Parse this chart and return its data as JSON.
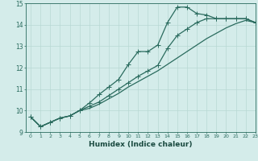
{
  "title": "",
  "xlabel": "Humidex (Indice chaleur)",
  "xlim": [
    -0.5,
    23
  ],
  "ylim": [
    9,
    15
  ],
  "xticks": [
    0,
    1,
    2,
    3,
    4,
    5,
    6,
    7,
    8,
    9,
    10,
    11,
    12,
    13,
    14,
    15,
    16,
    17,
    18,
    19,
    20,
    21,
    22,
    23
  ],
  "yticks": [
    9,
    10,
    11,
    12,
    13,
    14,
    15
  ],
  "bg_color": "#d4ecea",
  "line_color": "#2a6b5e",
  "grid_color": "#b8d8d4",
  "line1_x": [
    0,
    1,
    2,
    3,
    4,
    5,
    6,
    7,
    8,
    9,
    10,
    11,
    12,
    13,
    14,
    15,
    16,
    17,
    18,
    19,
    20,
    21,
    22,
    23
  ],
  "line1_y": [
    9.7,
    9.25,
    9.45,
    9.65,
    9.75,
    10.0,
    10.35,
    10.75,
    11.1,
    11.45,
    12.15,
    12.75,
    12.75,
    13.05,
    14.1,
    14.82,
    14.82,
    14.52,
    14.45,
    14.28,
    14.28,
    14.28,
    14.28,
    14.1
  ],
  "line2_x": [
    0,
    1,
    2,
    3,
    4,
    5,
    6,
    7,
    8,
    9,
    10,
    11,
    12,
    13,
    14,
    15,
    16,
    17,
    18,
    19,
    20,
    21,
    22,
    23
  ],
  "line2_y": [
    9.7,
    9.25,
    9.45,
    9.65,
    9.75,
    10.0,
    10.2,
    10.4,
    10.7,
    11.0,
    11.3,
    11.6,
    11.85,
    12.1,
    12.9,
    13.5,
    13.8,
    14.1,
    14.28,
    14.28,
    14.28,
    14.28,
    14.28,
    14.1
  ],
  "line3_x": [
    0,
    1,
    2,
    3,
    4,
    5,
    6,
    7,
    8,
    9,
    10,
    11,
    12,
    13,
    14,
    15,
    16,
    17,
    18,
    19,
    20,
    21,
    22,
    23
  ],
  "line3_y": [
    9.7,
    9.25,
    9.45,
    9.65,
    9.75,
    10.0,
    10.1,
    10.3,
    10.55,
    10.8,
    11.1,
    11.35,
    11.6,
    11.85,
    12.15,
    12.45,
    12.75,
    13.05,
    13.35,
    13.6,
    13.85,
    14.05,
    14.2,
    14.1
  ]
}
